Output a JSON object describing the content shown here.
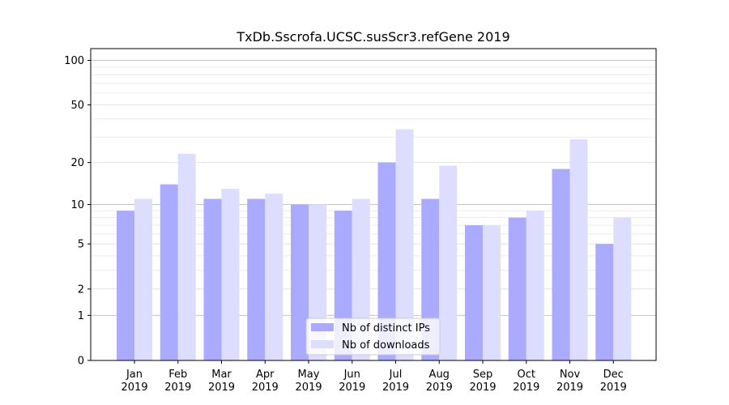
{
  "chart_data": {
    "type": "bar",
    "title": "TxDb.Sscrofa.UCSC.susScr3.refGene 2019",
    "xlabel": "",
    "ylabel": "",
    "y_scale": "log1p",
    "ylim": [
      0,
      120
    ],
    "y_ticks": [
      0,
      1,
      2,
      5,
      10,
      20,
      50,
      100
    ],
    "y_tick_labels": [
      "0",
      "1",
      "2",
      "5",
      "10",
      "20",
      "50",
      "100"
    ],
    "grid": "y minor and major",
    "legend_position": "lower-center",
    "categories": [
      {
        "month": "Jan",
        "year": "2019"
      },
      {
        "month": "Feb",
        "year": "2019"
      },
      {
        "month": "Mar",
        "year": "2019"
      },
      {
        "month": "Apr",
        "year": "2019"
      },
      {
        "month": "May",
        "year": "2019"
      },
      {
        "month": "Jun",
        "year": "2019"
      },
      {
        "month": "Jul",
        "year": "2019"
      },
      {
        "month": "Aug",
        "year": "2019"
      },
      {
        "month": "Sep",
        "year": "2019"
      },
      {
        "month": "Oct",
        "year": "2019"
      },
      {
        "month": "Nov",
        "year": "2019"
      },
      {
        "month": "Dec",
        "year": "2019"
      }
    ],
    "series": [
      {
        "name": "Nb of distinct IPs",
        "color": "#aaaaff",
        "values": [
          9,
          14,
          11,
          11,
          10,
          9,
          20,
          11,
          7,
          8,
          18,
          5
        ]
      },
      {
        "name": "Nb of downloads",
        "color": "#ddddff",
        "values": [
          11,
          23,
          13,
          12,
          10,
          11,
          34,
          19,
          7,
          9,
          29,
          8
        ]
      }
    ]
  }
}
